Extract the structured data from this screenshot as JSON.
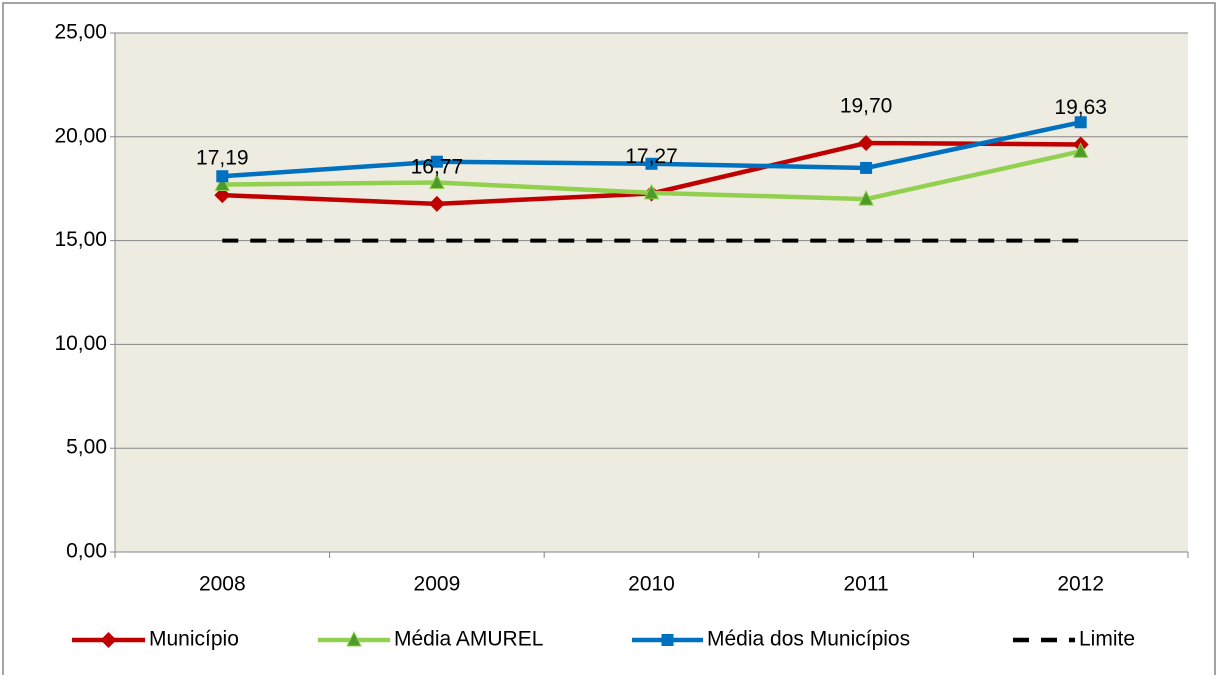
{
  "chart_data": {
    "type": "line",
    "categories": [
      "2008",
      "2009",
      "2010",
      "2011",
      "2012"
    ],
    "series": [
      {
        "name": "Município",
        "color": "#c00000",
        "marker": "diamond",
        "values": [
          17.19,
          16.77,
          17.27,
          19.7,
          19.63
        ],
        "value_labels": [
          "17,19",
          "16,77",
          "17,27",
          "19,70",
          "19,63"
        ]
      },
      {
        "name": "Média AMUREL",
        "color": "#92d050",
        "marker": "triangle",
        "values": [
          17.7,
          17.8,
          17.3,
          17.0,
          19.3
        ]
      },
      {
        "name": "Média dos Municípios",
        "color": "#0070c0",
        "marker": "square",
        "values": [
          18.1,
          18.8,
          18.7,
          18.5,
          20.7
        ]
      },
      {
        "name": "Limite",
        "color": "#000000",
        "marker": "none",
        "dashed": true,
        "values": [
          15,
          15,
          15,
          15,
          15
        ]
      }
    ],
    "ylim": [
      0,
      25
    ],
    "yticks": [
      {
        "value": 0,
        "label": "0,00"
      },
      {
        "value": 5,
        "label": "5,00"
      },
      {
        "value": 10,
        "label": "10,00"
      },
      {
        "value": 15,
        "label": "15,00"
      },
      {
        "value": 20,
        "label": "20,00"
      },
      {
        "value": 25,
        "label": "25,00"
      }
    ],
    "grid": true,
    "legend": "bottom"
  }
}
